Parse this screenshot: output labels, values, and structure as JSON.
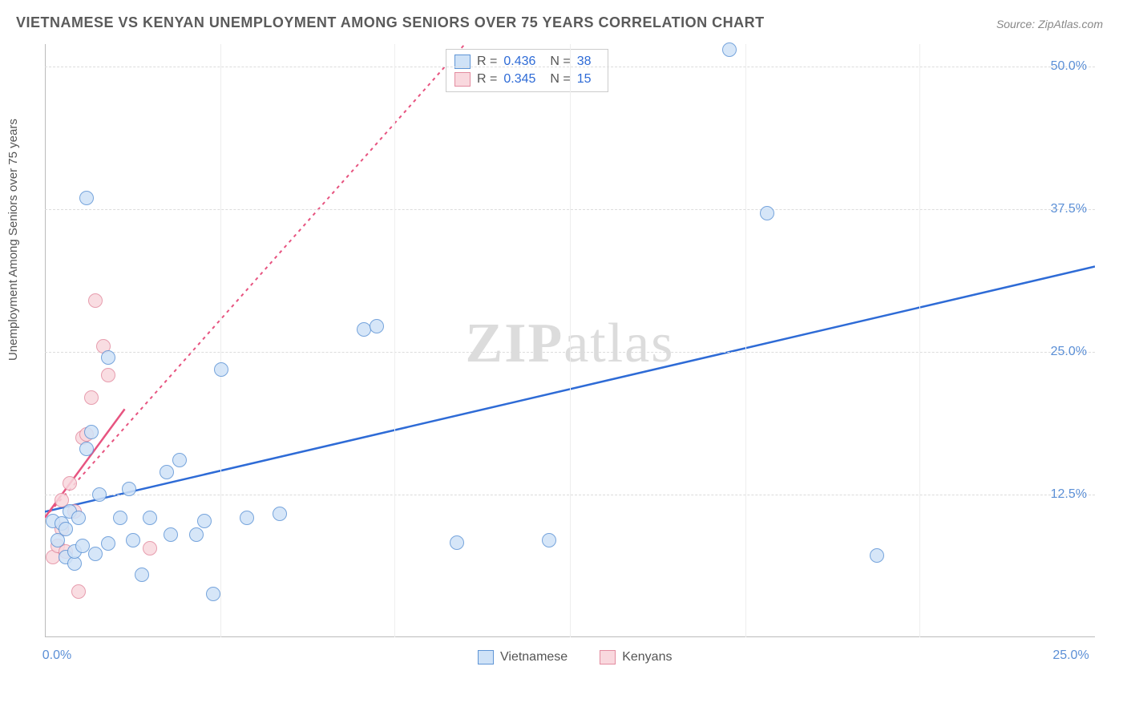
{
  "title": "VIETNAMESE VS KENYAN UNEMPLOYMENT AMONG SENIORS OVER 75 YEARS CORRELATION CHART",
  "source_label": "Source:",
  "source_name": "ZipAtlas.com",
  "ylabel": "Unemployment Among Seniors over 75 years",
  "watermark_part1": "ZIP",
  "watermark_part2": "atlas",
  "chart": {
    "type": "scatter",
    "background_color": "#ffffff",
    "grid_color": "#dcdcdc",
    "axis_color": "#bbbbbb",
    "tick_color": "#5b8fd6",
    "xlim": [
      0,
      25
    ],
    "ylim": [
      0,
      52
    ],
    "yticks": [
      {
        "v": 12.5,
        "label": "12.5%"
      },
      {
        "v": 25.0,
        "label": "25.0%"
      },
      {
        "v": 37.5,
        "label": "37.5%"
      },
      {
        "v": 50.0,
        "label": "50.0%"
      }
    ],
    "xgrid": [
      4.17,
      8.33,
      12.5,
      16.67,
      20.83
    ],
    "xticks": [
      {
        "v": 0,
        "label": "0.0%"
      },
      {
        "v": 25,
        "label": "25.0%"
      }
    ],
    "point_radius": 9,
    "point_stroke_width": 1
  },
  "series": [
    {
      "name": "Vietnamese",
      "fill": "#cfe2f7",
      "stroke": "#5f95d6",
      "line_color": "#2e6bd6",
      "line_width": 2.5,
      "line_dash": "none",
      "regression": {
        "x1": 0,
        "y1": 11.0,
        "x2": 25,
        "y2": 32.5
      },
      "stats": {
        "R_label": "R =",
        "R": "0.436",
        "N_label": "N =",
        "N": "38"
      },
      "points": [
        {
          "x": 0.2,
          "y": 10.2
        },
        {
          "x": 0.3,
          "y": 8.5
        },
        {
          "x": 0.4,
          "y": 10.0
        },
        {
          "x": 0.5,
          "y": 7.0
        },
        {
          "x": 0.5,
          "y": 9.5
        },
        {
          "x": 0.6,
          "y": 11.0
        },
        {
          "x": 0.7,
          "y": 6.5
        },
        {
          "x": 0.7,
          "y": 7.5
        },
        {
          "x": 0.8,
          "y": 10.5
        },
        {
          "x": 0.9,
          "y": 8.0
        },
        {
          "x": 1.0,
          "y": 16.5
        },
        {
          "x": 1.0,
          "y": 38.5
        },
        {
          "x": 1.1,
          "y": 18.0
        },
        {
          "x": 1.2,
          "y": 7.3
        },
        {
          "x": 1.3,
          "y": 12.5
        },
        {
          "x": 1.5,
          "y": 8.2
        },
        {
          "x": 1.5,
          "y": 24.5
        },
        {
          "x": 1.8,
          "y": 10.5
        },
        {
          "x": 2.0,
          "y": 13.0
        },
        {
          "x": 2.1,
          "y": 8.5
        },
        {
          "x": 2.3,
          "y": 5.5
        },
        {
          "x": 2.5,
          "y": 10.5
        },
        {
          "x": 2.9,
          "y": 14.5
        },
        {
          "x": 3.0,
          "y": 9.0
        },
        {
          "x": 3.2,
          "y": 15.5
        },
        {
          "x": 3.6,
          "y": 9.0
        },
        {
          "x": 3.8,
          "y": 10.2
        },
        {
          "x": 4.0,
          "y": 3.8
        },
        {
          "x": 4.2,
          "y": 23.5
        },
        {
          "x": 4.8,
          "y": 10.5
        },
        {
          "x": 5.6,
          "y": 10.8
        },
        {
          "x": 7.6,
          "y": 27.0
        },
        {
          "x": 7.9,
          "y": 27.3
        },
        {
          "x": 9.8,
          "y": 8.3
        },
        {
          "x": 12.0,
          "y": 8.5
        },
        {
          "x": 16.3,
          "y": 51.5
        },
        {
          "x": 17.2,
          "y": 37.2
        },
        {
          "x": 19.8,
          "y": 7.2
        }
      ]
    },
    {
      "name": "Kenyans",
      "fill": "#f9d8de",
      "stroke": "#e38ca0",
      "line_color": "#e75480",
      "line_width": 2,
      "line_dash": "4,5",
      "regression": {
        "x1": 0,
        "y1": 10.5,
        "x2": 10,
        "y2": 52.0
      },
      "partial_solid": {
        "x1": 0,
        "y1": 10.5,
        "x2": 1.9,
        "y2": 20.0
      },
      "stats": {
        "R_label": "R =",
        "R": "0.345",
        "N_label": "N =",
        "N": "15"
      },
      "points": [
        {
          "x": 0.2,
          "y": 7.0
        },
        {
          "x": 0.3,
          "y": 8.0
        },
        {
          "x": 0.4,
          "y": 9.5
        },
        {
          "x": 0.4,
          "y": 12.0
        },
        {
          "x": 0.5,
          "y": 7.5
        },
        {
          "x": 0.6,
          "y": 13.5
        },
        {
          "x": 0.7,
          "y": 11.0
        },
        {
          "x": 0.8,
          "y": 4.0
        },
        {
          "x": 0.9,
          "y": 17.5
        },
        {
          "x": 1.0,
          "y": 17.8
        },
        {
          "x": 1.1,
          "y": 21.0
        },
        {
          "x": 1.2,
          "y": 29.5
        },
        {
          "x": 1.4,
          "y": 25.5
        },
        {
          "x": 1.5,
          "y": 23.0
        },
        {
          "x": 2.5,
          "y": 7.8
        }
      ]
    }
  ],
  "bottom_legend": [
    {
      "label": "Vietnamese",
      "fill": "#cfe2f7",
      "stroke": "#5f95d6"
    },
    {
      "label": "Kenyans",
      "fill": "#f9d8de",
      "stroke": "#e38ca0"
    }
  ]
}
